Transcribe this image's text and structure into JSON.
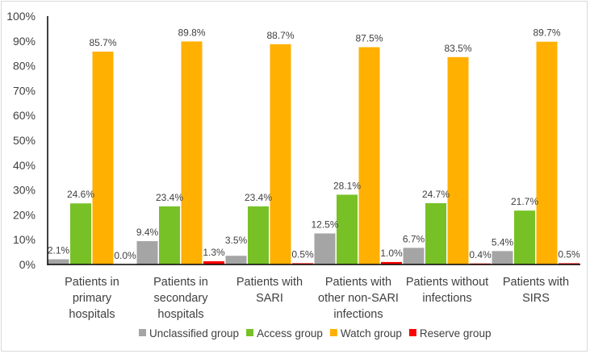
{
  "chart_data": {
    "type": "bar",
    "title": "",
    "xlabel": "",
    "ylabel": "",
    "ylim": [
      0,
      100
    ],
    "yticks": [
      "0%",
      "10%",
      "20%",
      "30%",
      "40%",
      "50%",
      "60%",
      "70%",
      "80%",
      "90%",
      "100%"
    ],
    "categories": [
      [
        "Patients in",
        "primary",
        "hospitals"
      ],
      [
        "Patients in",
        "secondary",
        "hospitals"
      ],
      [
        "Patients with",
        "SARI"
      ],
      [
        "Patients with",
        "other non-SARI",
        "infections"
      ],
      [
        "Patients without",
        "infections"
      ],
      [
        "Patients with",
        "SIRS"
      ]
    ],
    "series": [
      {
        "name": "Unclassified group",
        "color": "#a5a5a5",
        "values": [
          2.1,
          9.4,
          3.5,
          12.5,
          6.7,
          5.4
        ],
        "labels": [
          "2.1%",
          "9.4%",
          "3.5%",
          "12.5%",
          "6.7%",
          "5.4%"
        ]
      },
      {
        "name": "Access group",
        "color": "#77c127",
        "values": [
          24.6,
          23.4,
          23.4,
          28.1,
          24.7,
          21.7
        ],
        "labels": [
          "24.6%",
          "23.4%",
          "23.4%",
          "28.1%",
          "24.7%",
          "21.7%"
        ]
      },
      {
        "name": "Watch group",
        "color": "#ffb000",
        "values": [
          85.7,
          89.8,
          88.7,
          87.5,
          83.5,
          89.7
        ],
        "labels": [
          "85.7%",
          "89.8%",
          "88.7%",
          "87.5%",
          "83.5%",
          "89.7%"
        ]
      },
      {
        "name": "Reserve group",
        "color": "#ff0000",
        "values": [
          0.0,
          1.3,
          0.5,
          1.0,
          0.4,
          0.5
        ],
        "labels": [
          "0.0%",
          "1.3%",
          "0.5%",
          "1.0%",
          "0.4%",
          "0.5%"
        ]
      }
    ],
    "grid": false,
    "legend": "bottom"
  }
}
